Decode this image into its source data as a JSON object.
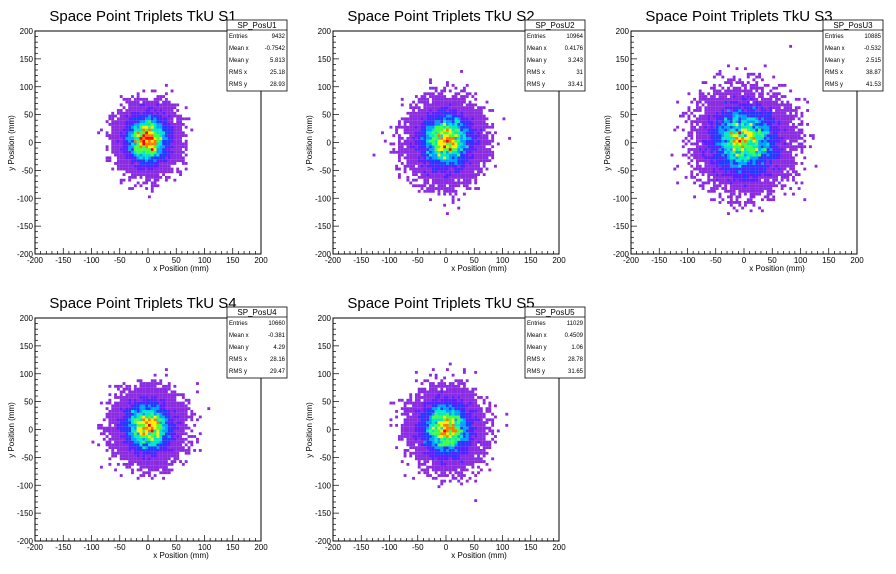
{
  "chart_data": [
    {
      "type": "heatmap",
      "title": "Space Point Triplets TkU S1",
      "xlabel": "x Position (mm)",
      "ylabel": "y Position (mm)",
      "xlim": [
        -200,
        200
      ],
      "ylim": [
        -200,
        200
      ],
      "xticks": [
        "-200",
        "-150",
        "-100",
        "-50",
        "0",
        "50",
        "100",
        "150",
        "200"
      ],
      "yticks": [
        "-200",
        "-150",
        "-100",
        "-50",
        "0",
        "50",
        "100",
        "150",
        "200"
      ],
      "stats": {
        "name": "SP_PosU1",
        "rows": [
          {
            "label": "Entries",
            "value": "9432"
          },
          {
            "label": "Mean x",
            "value": "-0.7542"
          },
          {
            "label": "Mean y",
            "value": "5.813"
          },
          {
            "label": "RMS x",
            "value": "25.18"
          },
          {
            "label": "RMS y",
            "value": "28.93"
          }
        ]
      },
      "distribution": {
        "mean_x": -0.7542,
        "mean_y": 5.813,
        "rms_x": 25.18,
        "rms_y": 28.93,
        "entries": 9432
      }
    },
    {
      "type": "heatmap",
      "title": "Space Point Triplets TkU S2",
      "xlabel": "x Position (mm)",
      "ylabel": "y Position (mm)",
      "xlim": [
        -200,
        200
      ],
      "ylim": [
        -200,
        200
      ],
      "xticks": [
        "-200",
        "-150",
        "-100",
        "-50",
        "0",
        "50",
        "100",
        "150",
        "200"
      ],
      "yticks": [
        "-200",
        "-150",
        "-100",
        "-50",
        "0",
        "50",
        "100",
        "150",
        "200"
      ],
      "stats": {
        "name": "SP_PosU2",
        "rows": [
          {
            "label": "Entries",
            "value": "10964"
          },
          {
            "label": "Mean x",
            "value": "0.4176"
          },
          {
            "label": "Mean y",
            "value": "3.243"
          },
          {
            "label": "RMS x",
            "value": "31"
          },
          {
            "label": "RMS y",
            "value": "33.41"
          }
        ]
      },
      "distribution": {
        "mean_x": 0.4176,
        "mean_y": 3.243,
        "rms_x": 31,
        "rms_y": 33.41,
        "entries": 10964
      }
    },
    {
      "type": "heatmap",
      "title": "Space Point Triplets TkU S3",
      "xlabel": "x Position (mm)",
      "ylabel": "y Position (mm)",
      "xlim": [
        -200,
        200
      ],
      "ylim": [
        -200,
        200
      ],
      "xticks": [
        "-200",
        "-150",
        "-100",
        "-50",
        "0",
        "50",
        "100",
        "150",
        "200"
      ],
      "yticks": [
        "-200",
        "-150",
        "-100",
        "-50",
        "0",
        "50",
        "100",
        "150",
        "200"
      ],
      "stats": {
        "name": "SP_PosU3",
        "rows": [
          {
            "label": "Entries",
            "value": "10885"
          },
          {
            "label": "Mean x",
            "value": "-0.532"
          },
          {
            "label": "Mean y",
            "value": "2.515"
          },
          {
            "label": "RMS x",
            "value": "38.87"
          },
          {
            "label": "RMS y",
            "value": "41.53"
          }
        ]
      },
      "distribution": {
        "mean_x": -0.532,
        "mean_y": 2.515,
        "rms_x": 38.87,
        "rms_y": 41.53,
        "entries": 10885
      }
    },
    {
      "type": "heatmap",
      "title": "Space Point Triplets TkU S4",
      "xlabel": "x Position (mm)",
      "ylabel": "y Position (mm)",
      "xlim": [
        -200,
        200
      ],
      "ylim": [
        -200,
        200
      ],
      "xticks": [
        "-200",
        "-150",
        "-100",
        "-50",
        "0",
        "50",
        "100",
        "150",
        "200"
      ],
      "yticks": [
        "-200",
        "-150",
        "-100",
        "-50",
        "0",
        "50",
        "100",
        "150",
        "200"
      ],
      "stats": {
        "name": "SP_PosU4",
        "rows": [
          {
            "label": "Entries",
            "value": "10660"
          },
          {
            "label": "Mean x",
            "value": "-0.381"
          },
          {
            "label": "Mean y",
            "value": "4.29"
          },
          {
            "label": "RMS x",
            "value": "28.16"
          },
          {
            "label": "RMS y",
            "value": "29.47"
          }
        ]
      },
      "distribution": {
        "mean_x": -0.381,
        "mean_y": 4.29,
        "rms_x": 28.16,
        "rms_y": 29.47,
        "entries": 10660
      }
    },
    {
      "type": "heatmap",
      "title": "Space Point Triplets TkU S5",
      "xlabel": "x Position (mm)",
      "ylabel": "y Position (mm)",
      "xlim": [
        -200,
        200
      ],
      "ylim": [
        -200,
        200
      ],
      "xticks": [
        "-200",
        "-150",
        "-100",
        "-50",
        "0",
        "50",
        "100",
        "150",
        "200"
      ],
      "yticks": [
        "-200",
        "-150",
        "-100",
        "-50",
        "0",
        "50",
        "100",
        "150",
        "200"
      ],
      "stats": {
        "name": "SP_PosU5",
        "rows": [
          {
            "label": "Entries",
            "value": "11029"
          },
          {
            "label": "Mean x",
            "value": "0.4509"
          },
          {
            "label": "Mean y",
            "value": "1.06"
          },
          {
            "label": "RMS x",
            "value": "28.78"
          },
          {
            "label": "RMS y",
            "value": "31.65"
          }
        ]
      },
      "distribution": {
        "mean_x": 0.4509,
        "mean_y": 1.06,
        "rms_x": 28.78,
        "rms_y": 31.65,
        "entries": 11029
      }
    }
  ],
  "colors": {
    "palette": [
      "#8a2be2",
      "#5a1eff",
      "#1e3cff",
      "#00a0ff",
      "#00e6c8",
      "#40ff40",
      "#ffee00",
      "#ff7800",
      "#ff0000"
    ]
  }
}
